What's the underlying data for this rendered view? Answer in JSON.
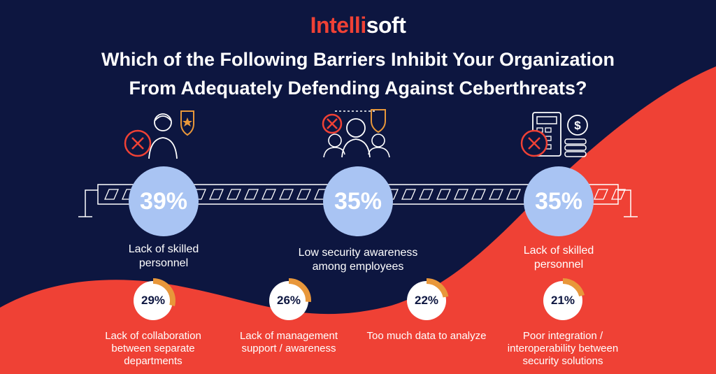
{
  "brand": {
    "part1": "Intelli",
    "part2": "soft"
  },
  "title": {
    "line1": "Which of the Following Barriers Inhibit Your Organization",
    "line2": "From Adequately Defending Against Ceberthreats?"
  },
  "colors": {
    "navy": "#0d1640",
    "red": "#ef4135",
    "light_blue": "#a9c4f3",
    "orange": "#e8973a",
    "white": "#ffffff"
  },
  "chart_data": {
    "type": "pie",
    "title": "Which of the Following Barriers Inhibit Your Organization From Adequately Defending Against Ceberthreats?",
    "unit": "%",
    "top_barriers": [
      {
        "value": 39,
        "label": "39%",
        "text": "Lack of skilled personnel",
        "icon": "personnel-icon"
      },
      {
        "value": 35,
        "label": "35%",
        "text": "Low security awareness among employees",
        "icon": "employees-group-icon"
      },
      {
        "value": 35,
        "label": "35%",
        "text": "Lack of skilled personnel",
        "icon": "budget-calculator-icon"
      }
    ],
    "other_barriers": [
      {
        "value": 29,
        "label": "29%",
        "text": "Lack of collaboration between separate departments"
      },
      {
        "value": 26,
        "label": "26%",
        "text": "Lack of management support / awareness"
      },
      {
        "value": 22,
        "label": "22%",
        "text": "Too much data to analyze"
      },
      {
        "value": 21,
        "label": "21%",
        "text": "Poor integration / interoperability between security solutions"
      }
    ]
  }
}
